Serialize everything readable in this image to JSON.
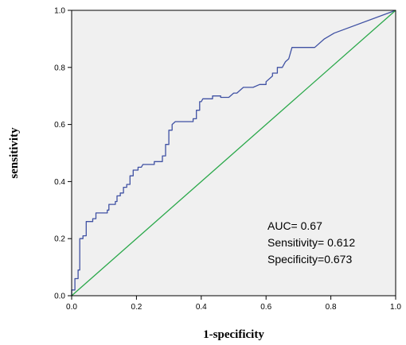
{
  "chart_data": {
    "type": "line",
    "xlabel": "1-specificity",
    "ylabel": "sensitivity",
    "xlim": [
      0,
      1
    ],
    "ylim": [
      0,
      1
    ],
    "x_ticks": [
      "0.0",
      "0.2",
      "0.4",
      "0.6",
      "0.8",
      "1.0"
    ],
    "y_ticks": [
      "0.0",
      "0.2",
      "0.4",
      "0.6",
      "0.8",
      "1.0"
    ],
    "grid": false,
    "background": "#f0f0f0",
    "series": [
      {
        "color": "#3f51a3",
        "points": [
          [
            0.0,
            0.0
          ],
          [
            0.0,
            0.02
          ],
          [
            0.01,
            0.02
          ],
          [
            0.01,
            0.06
          ],
          [
            0.02,
            0.06
          ],
          [
            0.02,
            0.09
          ],
          [
            0.025,
            0.09
          ],
          [
            0.025,
            0.2
          ],
          [
            0.035,
            0.2
          ],
          [
            0.035,
            0.21
          ],
          [
            0.045,
            0.21
          ],
          [
            0.045,
            0.26
          ],
          [
            0.065,
            0.26
          ],
          [
            0.065,
            0.27
          ],
          [
            0.075,
            0.27
          ],
          [
            0.075,
            0.29
          ],
          [
            0.11,
            0.29
          ],
          [
            0.11,
            0.3
          ],
          [
            0.115,
            0.3
          ],
          [
            0.115,
            0.32
          ],
          [
            0.135,
            0.32
          ],
          [
            0.135,
            0.33
          ],
          [
            0.14,
            0.33
          ],
          [
            0.14,
            0.35
          ],
          [
            0.15,
            0.35
          ],
          [
            0.15,
            0.36
          ],
          [
            0.16,
            0.36
          ],
          [
            0.16,
            0.38
          ],
          [
            0.17,
            0.38
          ],
          [
            0.17,
            0.39
          ],
          [
            0.18,
            0.39
          ],
          [
            0.18,
            0.42
          ],
          [
            0.19,
            0.42
          ],
          [
            0.19,
            0.44
          ],
          [
            0.205,
            0.44
          ],
          [
            0.205,
            0.45
          ],
          [
            0.215,
            0.45
          ],
          [
            0.22,
            0.46
          ],
          [
            0.255,
            0.46
          ],
          [
            0.255,
            0.47
          ],
          [
            0.28,
            0.47
          ],
          [
            0.28,
            0.49
          ],
          [
            0.29,
            0.49
          ],
          [
            0.29,
            0.53
          ],
          [
            0.3,
            0.53
          ],
          [
            0.3,
            0.58
          ],
          [
            0.31,
            0.58
          ],
          [
            0.31,
            0.6
          ],
          [
            0.32,
            0.61
          ],
          [
            0.375,
            0.61
          ],
          [
            0.375,
            0.62
          ],
          [
            0.385,
            0.62
          ],
          [
            0.385,
            0.65
          ],
          [
            0.395,
            0.65
          ],
          [
            0.395,
            0.68
          ],
          [
            0.4,
            0.68
          ],
          [
            0.405,
            0.69
          ],
          [
            0.435,
            0.69
          ],
          [
            0.435,
            0.7
          ],
          [
            0.46,
            0.7
          ],
          [
            0.46,
            0.695
          ],
          [
            0.485,
            0.695
          ],
          [
            0.5,
            0.71
          ],
          [
            0.51,
            0.71
          ],
          [
            0.52,
            0.72
          ],
          [
            0.53,
            0.73
          ],
          [
            0.56,
            0.73
          ],
          [
            0.58,
            0.74
          ],
          [
            0.6,
            0.74
          ],
          [
            0.6,
            0.75
          ],
          [
            0.62,
            0.77
          ],
          [
            0.62,
            0.78
          ],
          [
            0.635,
            0.78
          ],
          [
            0.635,
            0.8
          ],
          [
            0.65,
            0.8
          ],
          [
            0.66,
            0.82
          ],
          [
            0.67,
            0.83
          ],
          [
            0.68,
            0.87
          ],
          [
            0.75,
            0.87
          ],
          [
            0.78,
            0.9
          ],
          [
            0.81,
            0.92
          ],
          [
            1.0,
            1.0
          ]
        ]
      },
      {
        "color": "#2aa84a",
        "points": [
          [
            0.0,
            0.0
          ],
          [
            1.0,
            1.0
          ]
        ]
      }
    ],
    "annotations": [
      "AUC= 0.67",
      "Sensitivity= 0.612",
      "Specificity=0.673"
    ]
  }
}
